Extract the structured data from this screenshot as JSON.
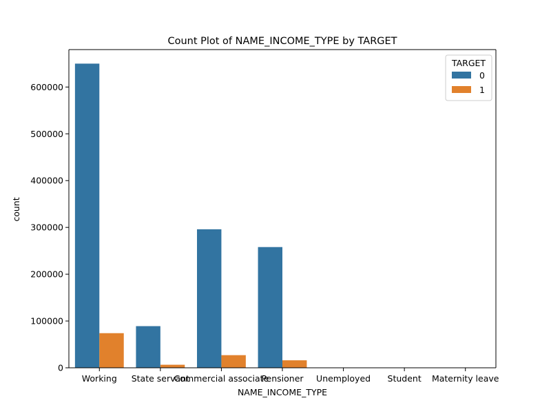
{
  "chart_data": {
    "type": "bar",
    "title": "Count Plot of NAME_INCOME_TYPE by TARGET",
    "xlabel": "NAME_INCOME_TYPE",
    "ylabel": "count",
    "categories": [
      "Working",
      "State servant",
      "Commercial associate",
      "Pensioner",
      "Unemployed",
      "Student",
      "Maternity leave"
    ],
    "series": [
      {
        "name": "0",
        "color": "#3274a1",
        "values": [
          650000,
          89000,
          296000,
          258000,
          30,
          20,
          5
        ]
      },
      {
        "name": "1",
        "color": "#e1812c",
        "values": [
          74000,
          6500,
          27000,
          16000,
          10,
          0,
          2
        ]
      }
    ],
    "ylim": [
      0,
      680000
    ],
    "yticks": [
      0,
      100000,
      200000,
      300000,
      400000,
      500000,
      600000
    ],
    "ytick_labels": [
      "0",
      "100000",
      "200000",
      "300000",
      "400000",
      "500000",
      "600000"
    ],
    "legend": {
      "title": "TARGET",
      "position": "top-right"
    },
    "grid": false
  }
}
